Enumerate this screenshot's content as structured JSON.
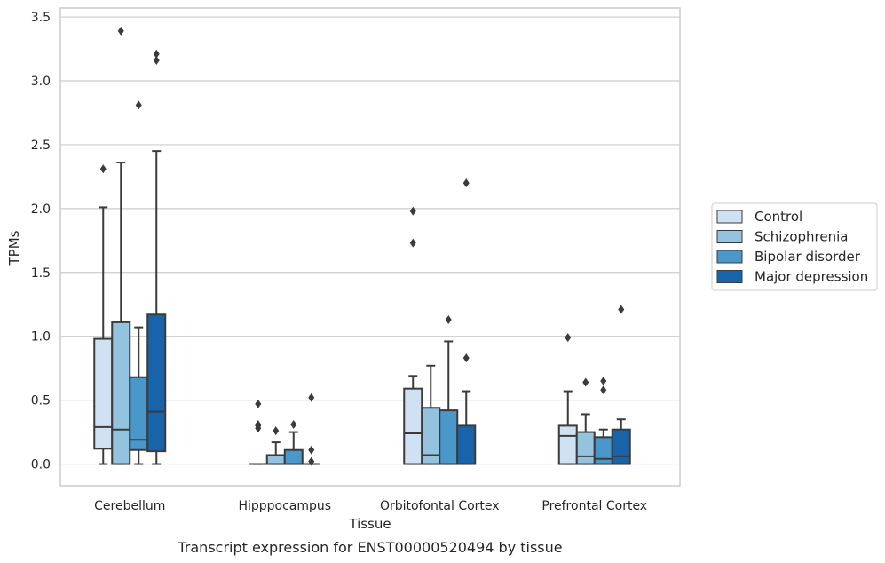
{
  "chart_data": {
    "type": "box",
    "xlabel": "Tissue",
    "ylabel": "TPMs",
    "caption": "Transcript expression for ENST00000520494 by tissue",
    "ylim": [
      -0.17,
      3.57
    ],
    "yticks": [
      0.0,
      0.5,
      1.0,
      1.5,
      2.0,
      2.5,
      3.0,
      3.5
    ],
    "ytick_labels": [
      "0.0",
      "0.5",
      "1.0",
      "1.5",
      "2.0",
      "2.5",
      "3.0",
      "3.5"
    ],
    "grid": "horizontal",
    "legend_position": "right-center",
    "categories": [
      "Cerebellum",
      "Hipppocampus",
      "Orbitofontal Cortex",
      "Prefrontal Cortex"
    ],
    "series": [
      {
        "name": "Control",
        "color": "#cfe1f2",
        "boxes": [
          {
            "q1": 0.12,
            "median": 0.29,
            "q3": 0.98,
            "whisker_low": 0.0,
            "whisker_high": 2.01,
            "outliers": [
              2.31
            ]
          },
          {
            "q1": 0.0,
            "median": 0.0,
            "q3": 0.0,
            "whisker_low": 0.0,
            "whisker_high": 0.0,
            "outliers": [
              0.28,
              0.3,
              0.31,
              0.47
            ]
          },
          {
            "q1": 0.0,
            "median": 0.24,
            "q3": 0.59,
            "whisker_low": 0.0,
            "whisker_high": 0.69,
            "outliers": [
              1.73,
              1.98
            ]
          },
          {
            "q1": 0.0,
            "median": 0.22,
            "q3": 0.3,
            "whisker_low": 0.0,
            "whisker_high": 0.57,
            "outliers": [
              0.99
            ]
          }
        ]
      },
      {
        "name": "Schizophrenia",
        "color": "#93c3df",
        "boxes": [
          {
            "q1": 0.0,
            "median": 0.27,
            "q3": 1.11,
            "whisker_low": 0.0,
            "whisker_high": 2.36,
            "outliers": [
              3.39
            ]
          },
          {
            "q1": 0.0,
            "median": 0.0,
            "q3": 0.07,
            "whisker_low": 0.0,
            "whisker_high": 0.17,
            "outliers": [
              0.26
            ]
          },
          {
            "q1": 0.0,
            "median": 0.07,
            "q3": 0.44,
            "whisker_low": 0.0,
            "whisker_high": 0.77,
            "outliers": []
          },
          {
            "q1": 0.0,
            "median": 0.06,
            "q3": 0.25,
            "whisker_low": 0.0,
            "whisker_high": 0.39,
            "outliers": [
              0.64
            ]
          }
        ]
      },
      {
        "name": "Bipolar disorder",
        "color": "#4a98c9",
        "boxes": [
          {
            "q1": 0.11,
            "median": 0.19,
            "q3": 0.68,
            "whisker_low": 0.0,
            "whisker_high": 1.07,
            "outliers": [
              2.81
            ]
          },
          {
            "q1": 0.0,
            "median": 0.0,
            "q3": 0.11,
            "whisker_low": 0.0,
            "whisker_high": 0.25,
            "outliers": [
              0.31
            ]
          },
          {
            "q1": 0.0,
            "median": 0.0,
            "q3": 0.42,
            "whisker_low": 0.0,
            "whisker_high": 0.96,
            "outliers": [
              1.13
            ]
          },
          {
            "q1": 0.0,
            "median": 0.04,
            "q3": 0.21,
            "whisker_low": 0.0,
            "whisker_high": 0.27,
            "outliers": [
              0.58,
              0.65
            ]
          }
        ]
      },
      {
        "name": "Major depression",
        "color": "#1764ab",
        "boxes": [
          {
            "q1": 0.1,
            "median": 0.41,
            "q3": 1.17,
            "whisker_low": 0.0,
            "whisker_high": 2.45,
            "outliers": [
              3.16,
              3.21
            ]
          },
          {
            "q1": 0.0,
            "median": 0.0,
            "q3": 0.0,
            "whisker_low": 0.0,
            "whisker_high": 0.0,
            "outliers": [
              0.02,
              0.11,
              0.52
            ]
          },
          {
            "q1": 0.0,
            "median": 0.0,
            "q3": 0.3,
            "whisker_low": 0.0,
            "whisker_high": 0.57,
            "outliers": [
              0.83,
              2.2
            ]
          },
          {
            "q1": 0.0,
            "median": 0.06,
            "q3": 0.27,
            "whisker_low": 0.0,
            "whisker_high": 0.35,
            "outliers": [
              1.21
            ]
          }
        ]
      }
    ]
  }
}
